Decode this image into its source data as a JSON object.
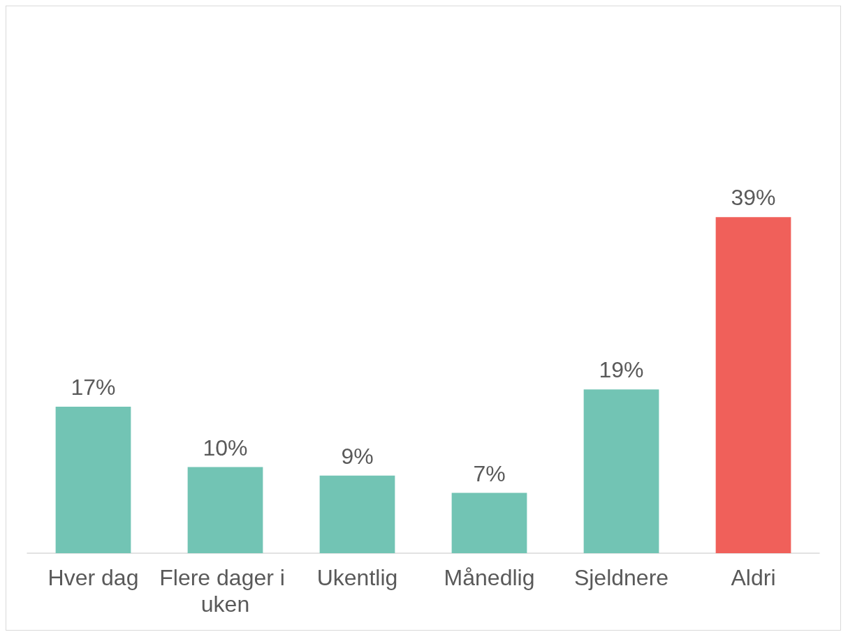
{
  "chart_data": {
    "type": "bar",
    "categories": [
      "Hver dag",
      "Flere dager i uken",
      "Ukentlig",
      "Månedlig",
      "Sjeldnere",
      "Aldri"
    ],
    "values": [
      17,
      10,
      9,
      7,
      19,
      39
    ],
    "colors": [
      "#72c4b4",
      "#72c4b4",
      "#72c4b4",
      "#72c4b4",
      "#72c4b4",
      "#f0605a"
    ],
    "value_labels": [
      "17%",
      "10%",
      "9%",
      "7%",
      "19%",
      "39%"
    ]
  }
}
